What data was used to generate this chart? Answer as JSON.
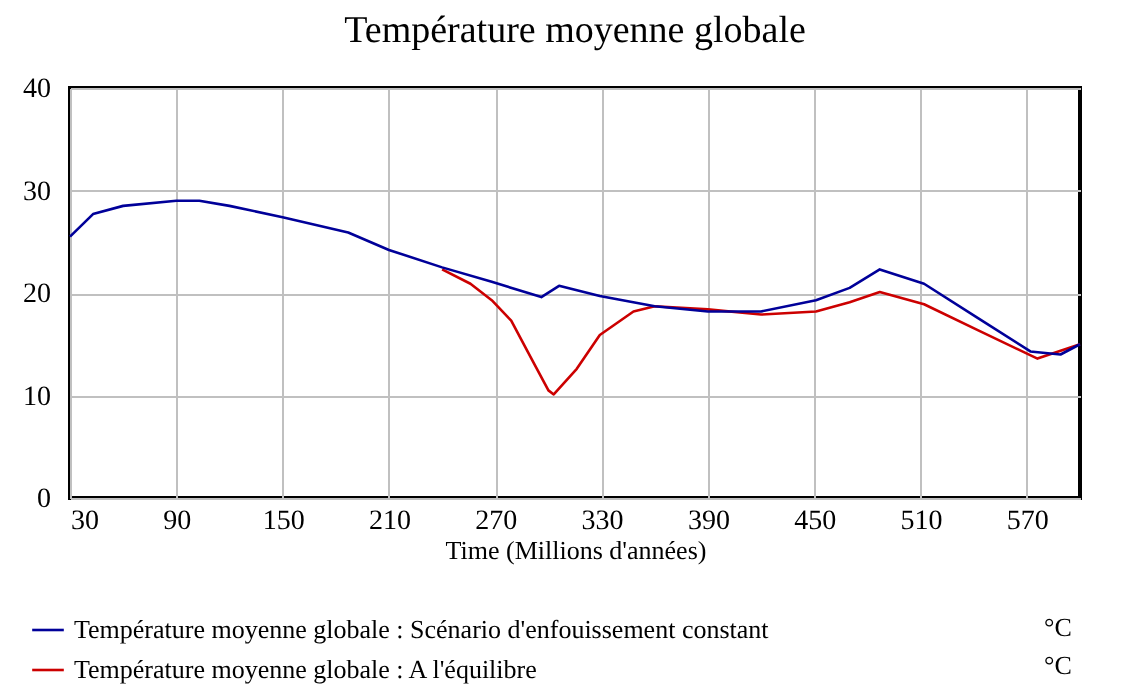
{
  "chart_data": {
    "type": "line",
    "title": "Température moyenne globale",
    "xlabel": "Time (Millions d'années)",
    "xlim": [
      30,
      600
    ],
    "ylim": [
      0,
      40
    ],
    "xticks": [
      30,
      90,
      150,
      210,
      270,
      330,
      390,
      450,
      510,
      570
    ],
    "yticks": [
      0,
      10,
      20,
      30,
      40
    ],
    "grid": true,
    "legend": "bottom left",
    "annotations": [
      "°C",
      "°C"
    ],
    "series": [
      {
        "name": "Température moyenne globale : Scénario d'enfouissement constant",
        "color": "#000099",
        "x": [
          30,
          43,
          60,
          90,
          103,
          120,
          150,
          187,
          210,
          240,
          268,
          296,
          306,
          329,
          360,
          390,
          420,
          451,
          470,
          487,
          512,
          542,
          572,
          589,
          600
        ],
        "values": [
          25.5,
          27.7,
          28.5,
          29.0,
          29.0,
          28.5,
          27.4,
          25.9,
          24.2,
          22.5,
          21.1,
          19.6,
          20.7,
          19.7,
          18.7,
          18.2,
          18.2,
          19.3,
          20.5,
          22.3,
          20.9,
          17.6,
          14.3,
          14.0,
          15.0
        ]
      },
      {
        "name": "Température moyenne globale : A l'équilibre",
        "color": "#cc0000",
        "x": [
          240,
          256,
          268,
          279,
          291,
          300,
          303,
          316,
          329,
          348,
          360,
          390,
          420,
          451,
          470,
          487,
          512,
          542,
          576,
          600
        ],
        "values": [
          22.3,
          20.9,
          19.3,
          17.3,
          13.4,
          10.5,
          10.1,
          12.6,
          15.9,
          18.2,
          18.7,
          18.4,
          17.9,
          18.2,
          19.1,
          20.1,
          18.9,
          16.4,
          13.6,
          15.0
        ]
      }
    ]
  }
}
